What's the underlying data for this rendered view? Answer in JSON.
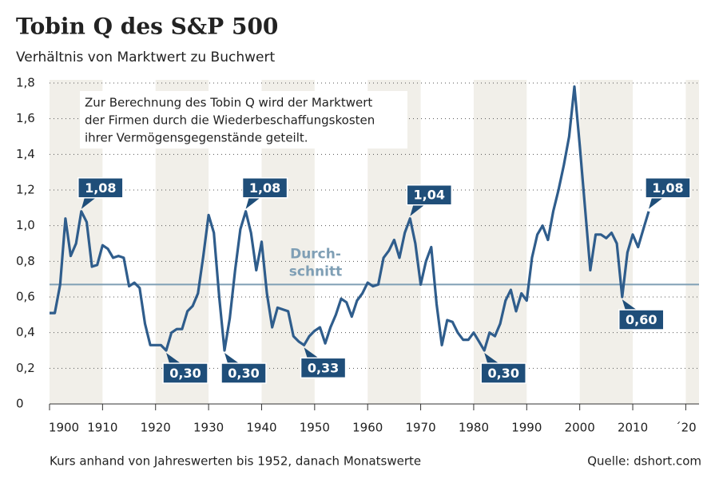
{
  "chart_data": {
    "type": "line",
    "title": "Tobin Q des S&P 500",
    "subtitle": "Verhältnis von Marktwert zu Buchwert",
    "note": [
      "Zur Berechnung des Tobin Q wird der Marktwert",
      "der Firmen durch die Wiederbeschaffungskosten",
      "ihrer Vermögensgegenstände geteilt."
    ],
    "footnote": "Kurs anhand von Jahreswerten bis 1952, danach Monatswerte",
    "source": "Quelle: dshort.com",
    "x": [
      1900,
      1901,
      1902,
      1903,
      1904,
      1905,
      1906,
      1907,
      1908,
      1909,
      1910,
      1911,
      1912,
      1913,
      1914,
      1915,
      1916,
      1917,
      1918,
      1919,
      1920,
      1921,
      1922,
      1923,
      1924,
      1925,
      1926,
      1927,
      1928,
      1929,
      1930,
      1931,
      1932,
      1933,
      1934,
      1935,
      1936,
      1937,
      1938,
      1939,
      1940,
      1941,
      1942,
      1943,
      1944,
      1945,
      1946,
      1947,
      1948,
      1949,
      1950,
      1951,
      1952,
      1953,
      1954,
      1955,
      1956,
      1957,
      1958,
      1959,
      1960,
      1961,
      1962,
      1963,
      1964,
      1965,
      1966,
      1967,
      1968,
      1969,
      1970,
      1971,
      1972,
      1973,
      1974,
      1975,
      1976,
      1977,
      1978,
      1979,
      1980,
      1981,
      1982,
      1983,
      1984,
      1985,
      1986,
      1987,
      1988,
      1989,
      1990,
      1991,
      1992,
      1993,
      1994,
      1995,
      1996,
      1997,
      1998,
      1999,
      2000,
      2001,
      2002,
      2003,
      2004,
      2005,
      2006,
      2007,
      2008,
      2009,
      2010,
      2011,
      2012,
      2013
    ],
    "series": [
      {
        "name": "Tobin Q",
        "color": "#2f5d8c",
        "values": [
          0.51,
          0.51,
          0.67,
          1.04,
          0.83,
          0.9,
          1.08,
          1.02,
          0.77,
          0.78,
          0.89,
          0.87,
          0.82,
          0.83,
          0.82,
          0.66,
          0.68,
          0.65,
          0.45,
          0.33,
          0.33,
          0.33,
          0.3,
          0.4,
          0.42,
          0.42,
          0.52,
          0.55,
          0.62,
          0.83,
          1.06,
          0.96,
          0.6,
          0.3,
          0.48,
          0.75,
          0.98,
          1.08,
          0.96,
          0.75,
          0.91,
          0.62,
          0.43,
          0.54,
          0.53,
          0.52,
          0.38,
          0.35,
          0.33,
          0.38,
          0.41,
          0.43,
          0.34,
          0.43,
          0.5,
          0.59,
          0.57,
          0.49,
          0.58,
          0.62,
          0.68,
          0.66,
          0.67,
          0.82,
          0.86,
          0.92,
          0.82,
          0.96,
          1.04,
          0.9,
          0.67,
          0.8,
          0.88,
          0.56,
          0.33,
          0.47,
          0.46,
          0.4,
          0.36,
          0.36,
          0.4,
          0.35,
          0.3,
          0.4,
          0.38,
          0.45,
          0.58,
          0.64,
          0.52,
          0.62,
          0.58,
          0.82,
          0.95,
          1.0,
          0.92,
          1.08,
          1.2,
          1.34,
          1.5,
          1.78,
          1.45,
          1.1,
          0.75,
          0.95,
          0.95,
          0.93,
          0.96,
          0.9,
          0.6,
          0.85,
          0.95,
          0.88,
          0.98,
          1.08
        ]
      }
    ],
    "average": {
      "value": 0.67,
      "color": "#7f9fb5",
      "label": [
        "Durch-",
        "schnitt"
      ]
    },
    "annotations": [
      {
        "x": 1906,
        "y": 1.08,
        "label": "1,08",
        "position": "above"
      },
      {
        "x": 1922,
        "y": 0.3,
        "label": "0,30",
        "position": "below"
      },
      {
        "x": 1933,
        "y": 0.3,
        "label": "0,30",
        "position": "below"
      },
      {
        "x": 1937,
        "y": 1.08,
        "label": "1,08",
        "position": "above"
      },
      {
        "x": 1948,
        "y": 0.33,
        "label": "0,33",
        "position": "below"
      },
      {
        "x": 1968,
        "y": 1.04,
        "label": "1,04",
        "position": "above"
      },
      {
        "x": 1982,
        "y": 0.3,
        "label": "0,30",
        "position": "below"
      },
      {
        "x": 2008,
        "y": 0.6,
        "label": "0,60",
        "position": "below"
      },
      {
        "x": 2013,
        "y": 1.08,
        "label": "1,08",
        "position": "above"
      }
    ],
    "annotation_color": "#1f4e79",
    "band_color": "#f1efe9",
    "xlim": [
      1900,
      2022.5
    ],
    "ylim": [
      0,
      1.8
    ],
    "xticks": [
      1900,
      1910,
      1920,
      1930,
      1940,
      1950,
      1960,
      1970,
      1980,
      1990,
      2000,
      2010,
      {
        "value": 2020,
        "label": "´20"
      }
    ],
    "yticks": [
      0,
      {
        "value": 0.2,
        "label": "0,2"
      },
      {
        "value": 0.4,
        "label": "0,4"
      },
      {
        "value": 0.6,
        "label": "0,6"
      },
      {
        "value": 0.8,
        "label": "0,8"
      },
      {
        "value": 1.0,
        "label": "1,0"
      },
      {
        "value": 1.2,
        "label": "1,2"
      },
      {
        "value": 1.4,
        "label": "1,4"
      },
      {
        "value": 1.6,
        "label": "1,6"
      },
      {
        "value": 1.8,
        "label": "1,8"
      }
    ],
    "grid": true
  }
}
